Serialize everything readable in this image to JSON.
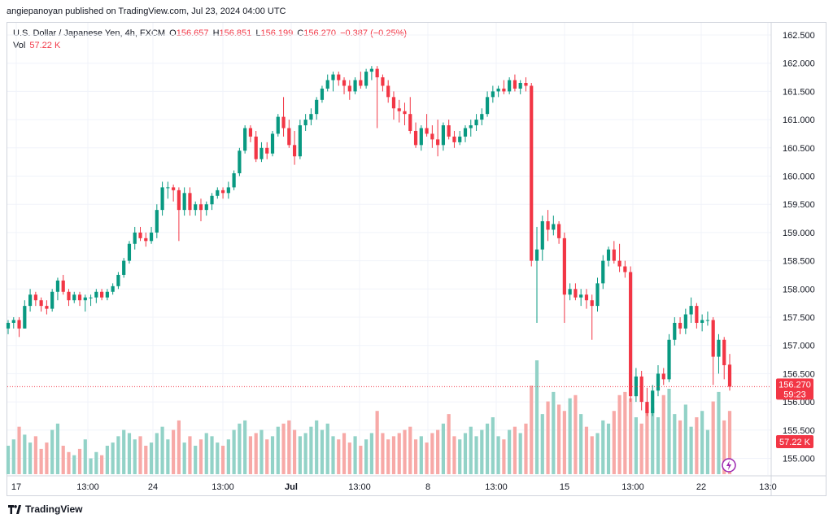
{
  "header": {
    "published_by": "angiepanoyan published on TradingView.com, Jul 23, 2024 04:00 UTC"
  },
  "legend": {
    "symbol": "U.S. Dollar / Japanese Yen, 4h, FXCM",
    "o_label": "O",
    "o_value": "156.657",
    "h_label": "H",
    "h_value": "156.851",
    "l_label": "L",
    "l_value": "156.199",
    "c_label": "C",
    "c_value": "156.270",
    "change": "−0.387 (−0.25%)",
    "vol_label": "Vol",
    "vol_value": "57.22 K"
  },
  "footer": {
    "brand": "TradingView"
  },
  "colors": {
    "up": "#089981",
    "down": "#f23645",
    "vol_up": "#92d2c7",
    "vol_down": "#f7a9a7",
    "grid": "#f0f3fa"
  },
  "chart_data": {
    "type": "candlestick",
    "symbol": "USDJPY",
    "interval": "4h",
    "y_ticks": [
      "162.500",
      "162.000",
      "161.500",
      "161.000",
      "160.500",
      "160.000",
      "159.500",
      "159.000",
      "158.500",
      "158.000",
      "157.500",
      "157.000",
      "156.500",
      "156.000",
      "155.500",
      "155.000"
    ],
    "ylim": [
      154.75,
      162.7
    ],
    "x_ticks": [
      "17",
      "13:00",
      "24",
      "13:00",
      "Jul",
      "13:00",
      "8",
      "13:00",
      "15",
      "13:00",
      "22",
      "13:0"
    ],
    "last_price": "156.270",
    "countdown": "59:23",
    "volume_label": "57.22 K",
    "candles": [
      [
        157.3,
        157.45,
        157.2,
        157.4
      ],
      [
        157.4,
        157.5,
        157.3,
        157.45
      ],
      [
        157.45,
        157.5,
        157.15,
        157.3
      ],
      [
        157.3,
        157.8,
        157.3,
        157.7
      ],
      [
        157.7,
        158.0,
        157.6,
        157.9
      ],
      [
        157.9,
        157.95,
        157.7,
        157.8
      ],
      [
        157.8,
        157.85,
        157.6,
        157.7
      ],
      [
        157.7,
        157.8,
        157.55,
        157.65
      ],
      [
        157.65,
        158.0,
        157.6,
        157.95
      ],
      [
        157.95,
        158.2,
        157.8,
        158.15
      ],
      [
        158.15,
        158.25,
        157.9,
        157.95
      ],
      [
        157.95,
        158.0,
        157.7,
        157.8
      ],
      [
        157.8,
        157.95,
        157.75,
        157.9
      ],
      [
        157.9,
        157.95,
        157.7,
        157.8
      ],
      [
        157.8,
        157.9,
        157.6,
        157.85
      ],
      [
        157.85,
        157.9,
        157.7,
        157.85
      ],
      [
        157.85,
        158.0,
        157.75,
        157.95
      ],
      [
        157.95,
        158.0,
        157.8,
        157.85
      ],
      [
        157.85,
        158.0,
        157.8,
        157.95
      ],
      [
        157.95,
        158.1,
        157.9,
        158.05
      ],
      [
        158.05,
        158.3,
        158.0,
        158.25
      ],
      [
        158.25,
        158.55,
        158.2,
        158.5
      ],
      [
        158.5,
        158.85,
        158.45,
        158.8
      ],
      [
        158.8,
        159.1,
        158.7,
        159.0
      ],
      [
        159.0,
        159.1,
        158.85,
        158.9
      ],
      [
        158.9,
        159.0,
        158.75,
        158.85
      ],
      [
        158.85,
        159.1,
        158.8,
        159.0
      ],
      [
        159.0,
        159.5,
        158.9,
        159.4
      ],
      [
        159.4,
        159.9,
        159.3,
        159.8
      ],
      [
        159.8,
        159.9,
        159.6,
        159.8
      ],
      [
        159.8,
        159.85,
        159.55,
        159.75
      ],
      [
        159.75,
        159.8,
        158.85,
        159.4
      ],
      [
        159.4,
        159.8,
        159.3,
        159.7
      ],
      [
        159.7,
        159.8,
        159.3,
        159.4
      ],
      [
        159.4,
        159.55,
        159.3,
        159.5
      ],
      [
        159.5,
        159.6,
        159.2,
        159.4
      ],
      [
        159.4,
        159.55,
        159.3,
        159.5
      ],
      [
        159.5,
        159.7,
        159.4,
        159.65
      ],
      [
        159.65,
        159.8,
        159.6,
        159.75
      ],
      [
        159.75,
        159.8,
        159.6,
        159.7
      ],
      [
        159.7,
        159.9,
        159.6,
        159.8
      ],
      [
        159.8,
        160.1,
        159.75,
        160.05
      ],
      [
        160.05,
        160.5,
        160.0,
        160.45
      ],
      [
        160.45,
        160.9,
        160.4,
        160.85
      ],
      [
        160.85,
        160.9,
        160.6,
        160.7
      ],
      [
        160.7,
        160.8,
        160.25,
        160.3
      ],
      [
        160.3,
        160.6,
        160.25,
        160.5
      ],
      [
        160.5,
        160.6,
        160.3,
        160.4
      ],
      [
        160.4,
        160.8,
        160.35,
        160.75
      ],
      [
        160.75,
        161.1,
        160.7,
        161.05
      ],
      [
        161.05,
        161.4,
        160.7,
        160.85
      ],
      [
        160.85,
        161.0,
        160.5,
        160.55
      ],
      [
        160.55,
        160.8,
        160.2,
        160.35
      ],
      [
        160.35,
        161.0,
        160.3,
        160.9
      ],
      [
        160.9,
        161.1,
        160.8,
        161.0
      ],
      [
        161.0,
        161.2,
        160.9,
        161.1
      ],
      [
        161.1,
        161.4,
        161.0,
        161.35
      ],
      [
        161.35,
        161.6,
        161.3,
        161.55
      ],
      [
        161.55,
        161.8,
        161.5,
        161.7
      ],
      [
        161.7,
        161.85,
        161.5,
        161.8
      ],
      [
        161.8,
        161.85,
        161.6,
        161.7
      ],
      [
        161.7,
        161.75,
        161.45,
        161.6
      ],
      [
        161.6,
        161.7,
        161.35,
        161.5
      ],
      [
        161.5,
        161.75,
        161.45,
        161.7
      ],
      [
        161.7,
        161.85,
        161.55,
        161.6
      ],
      [
        161.6,
        161.9,
        161.55,
        161.85
      ],
      [
        161.85,
        161.95,
        161.7,
        161.9
      ],
      [
        161.9,
        161.95,
        160.85,
        161.75
      ],
      [
        161.75,
        161.8,
        161.5,
        161.6
      ],
      [
        161.6,
        161.7,
        161.3,
        161.4
      ],
      [
        161.4,
        161.5,
        161.0,
        161.2
      ],
      [
        161.2,
        161.35,
        160.95,
        161.15
      ],
      [
        161.15,
        161.3,
        160.9,
        161.1
      ],
      [
        161.1,
        161.4,
        160.75,
        160.8
      ],
      [
        160.8,
        160.95,
        160.5,
        160.55
      ],
      [
        160.55,
        160.9,
        160.45,
        160.85
      ],
      [
        160.85,
        161.1,
        160.7,
        160.75
      ],
      [
        160.75,
        160.9,
        160.5,
        160.65
      ],
      [
        160.65,
        161.0,
        160.35,
        160.55
      ],
      [
        160.55,
        160.95,
        160.45,
        160.9
      ],
      [
        160.9,
        161.0,
        160.65,
        160.7
      ],
      [
        160.7,
        160.8,
        160.5,
        160.6
      ],
      [
        160.6,
        160.8,
        160.55,
        160.7
      ],
      [
        160.7,
        160.9,
        160.6,
        160.85
      ],
      [
        160.85,
        161.0,
        160.7,
        160.9
      ],
      [
        160.9,
        161.1,
        160.8,
        161.0
      ],
      [
        161.0,
        161.2,
        160.9,
        161.1
      ],
      [
        161.1,
        161.5,
        161.05,
        161.4
      ],
      [
        161.4,
        161.6,
        161.3,
        161.5
      ],
      [
        161.5,
        161.6,
        161.4,
        161.55
      ],
      [
        161.55,
        161.7,
        161.45,
        161.5
      ],
      [
        161.5,
        161.75,
        161.45,
        161.7
      ],
      [
        161.7,
        161.8,
        161.5,
        161.55
      ],
      [
        161.55,
        161.7,
        161.45,
        161.65
      ],
      [
        161.65,
        161.75,
        161.5,
        161.6
      ],
      [
        161.6,
        161.65,
        158.4,
        158.5
      ],
      [
        158.5,
        159.1,
        157.4,
        158.7
      ],
      [
        158.7,
        159.3,
        158.5,
        159.2
      ],
      [
        159.2,
        159.4,
        158.85,
        159.05
      ],
      [
        159.05,
        159.3,
        158.95,
        159.15
      ],
      [
        159.15,
        159.2,
        158.8,
        158.9
      ],
      [
        158.9,
        159.0,
        157.4,
        157.9
      ],
      [
        157.9,
        158.1,
        157.8,
        158.0
      ],
      [
        158.0,
        158.1,
        157.8,
        157.85
      ],
      [
        157.85,
        158.0,
        157.7,
        157.9
      ],
      [
        157.9,
        158.0,
        157.65,
        157.8
      ],
      [
        157.8,
        157.9,
        157.1,
        157.7
      ],
      [
        157.7,
        158.2,
        157.6,
        158.1
      ],
      [
        158.1,
        158.6,
        158.0,
        158.5
      ],
      [
        158.5,
        158.75,
        158.4,
        158.7
      ],
      [
        158.7,
        158.85,
        158.45,
        158.5
      ],
      [
        158.5,
        158.8,
        158.3,
        158.4
      ],
      [
        158.4,
        158.5,
        158.2,
        158.3
      ],
      [
        158.3,
        158.4,
        156.0,
        156.1
      ],
      [
        156.1,
        156.6,
        156.0,
        156.45
      ],
      [
        156.45,
        156.55,
        155.85,
        156.0
      ],
      [
        156.0,
        156.25,
        155.75,
        155.8
      ],
      [
        155.8,
        156.3,
        155.75,
        156.2
      ],
      [
        156.2,
        156.65,
        156.1,
        156.5
      ],
      [
        156.5,
        156.6,
        156.3,
        156.4
      ],
      [
        156.4,
        157.2,
        156.35,
        157.1
      ],
      [
        157.1,
        157.5,
        157.0,
        157.4
      ],
      [
        157.4,
        157.5,
        157.2,
        157.3
      ],
      [
        157.3,
        157.65,
        157.2,
        157.55
      ],
      [
        157.55,
        157.85,
        157.4,
        157.7
      ],
      [
        157.7,
        157.75,
        157.3,
        157.4
      ],
      [
        157.4,
        157.55,
        157.25,
        157.45
      ],
      [
        157.45,
        157.6,
        157.35,
        157.45
      ],
      [
        157.45,
        157.5,
        156.3,
        156.8
      ],
      [
        156.8,
        157.2,
        156.5,
        157.1
      ],
      [
        157.1,
        157.15,
        156.4,
        156.65
      ],
      [
        156.66,
        156.85,
        156.2,
        156.27
      ]
    ],
    "volumes": [
      18,
      22,
      30,
      25,
      20,
      24,
      16,
      20,
      28,
      32,
      18,
      14,
      12,
      16,
      22,
      10,
      14,
      12,
      18,
      20,
      24,
      28,
      26,
      22,
      24,
      18,
      20,
      26,
      30,
      22,
      28,
      34,
      20,
      24,
      18,
      22,
      26,
      24,
      20,
      18,
      22,
      28,
      32,
      34,
      24,
      26,
      28,
      22,
      24,
      30,
      32,
      34,
      28,
      24,
      26,
      30,
      34,
      28,
      32,
      24,
      22,
      26,
      20,
      24,
      18,
      22,
      26,
      40,
      26,
      22,
      24,
      26,
      28,
      30,
      22,
      24,
      20,
      26,
      28,
      32,
      38,
      24,
      22,
      26,
      30,
      24,
      28,
      32,
      36,
      24,
      22,
      28,
      30,
      26,
      32,
      56,
      72,
      38,
      46,
      52,
      44,
      40,
      48,
      50,
      38,
      30,
      24,
      26,
      34,
      32,
      40,
      50,
      52,
      48,
      36,
      32,
      44,
      42,
      36,
      50,
      54,
      38,
      34,
      44,
      30,
      36,
      40,
      28,
      46,
      52,
      34,
      40,
      30,
      34
    ]
  }
}
